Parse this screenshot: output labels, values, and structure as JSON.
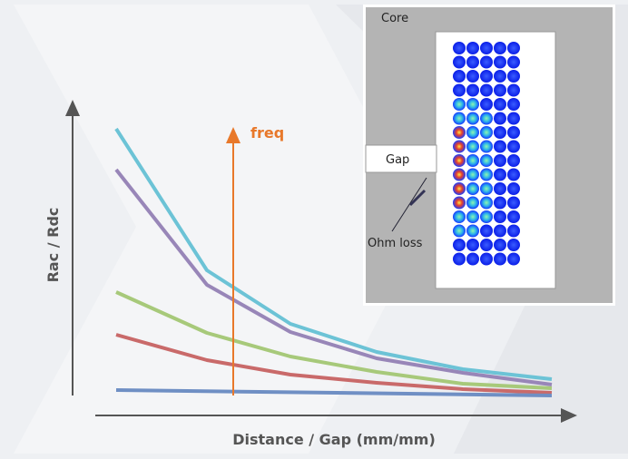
{
  "axes": {
    "y_label": "Rac / Rdc",
    "x_label": "Distance / Gap (mm/mm)",
    "arrow_label": "freq"
  },
  "inset": {
    "core": "Core",
    "gap": "Gap",
    "ohm_loss": "Ohm loss"
  }
}
